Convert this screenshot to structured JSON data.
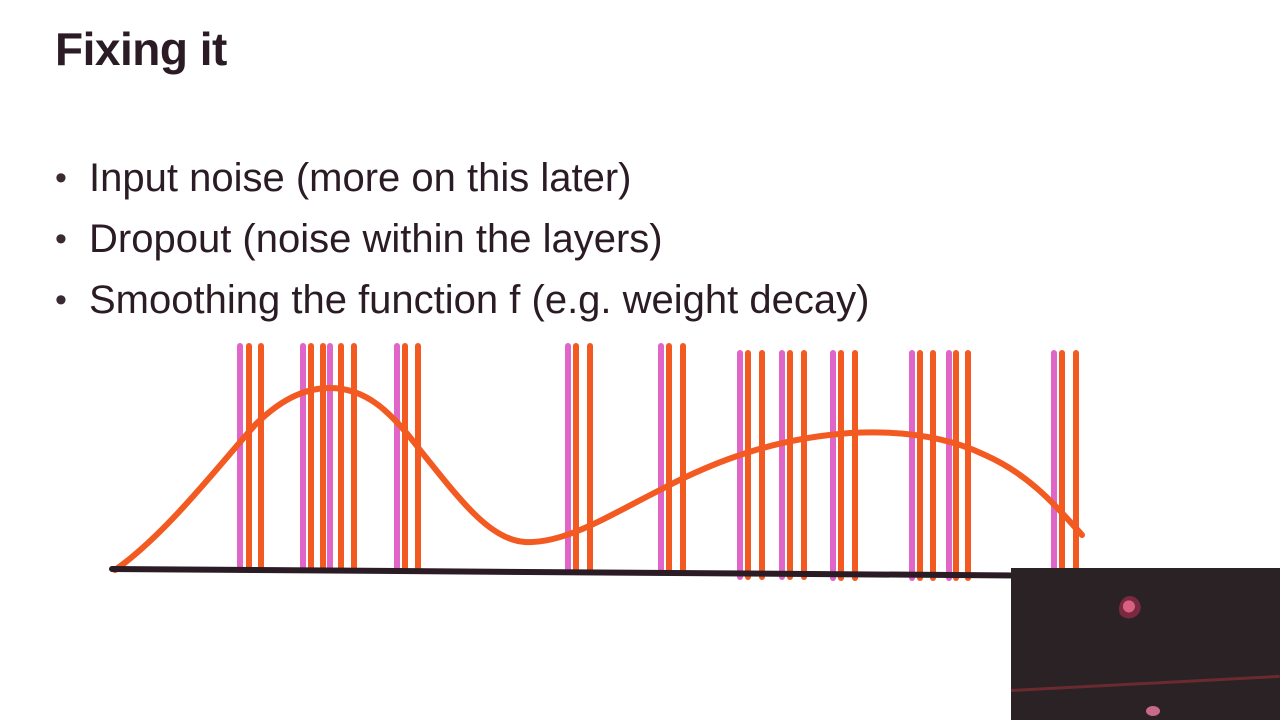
{
  "slide": {
    "title": "Fixing it",
    "bullets": [
      "Input noise (more on this later)",
      "Dropout (noise within the layers)",
      "Smoothing the function f (e.g. weight decay)"
    ]
  },
  "colors": {
    "curve": "#f25a22",
    "noise_line_orange": "#f25a22",
    "noise_line_pink": "#e065c8",
    "axis": "#2a1b24",
    "text": "#2a1b24"
  }
}
